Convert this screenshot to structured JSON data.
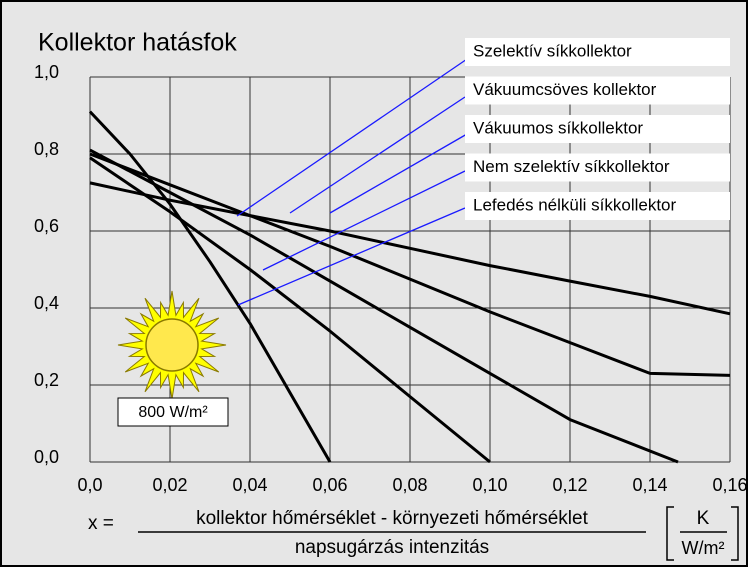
{
  "chart_data": {
    "type": "line",
    "title": "Kollektor hatásfok",
    "annotation": "800 W/m²",
    "x_label": {
      "prefix": "x =",
      "numerator": "kollektor hőmérséklet - környezeti hőmérséklet",
      "denominator": "napsugárzás intenzitás",
      "unit_numerator": "K",
      "unit_denominator": "W/m²"
    },
    "xlim": [
      0,
      0.16
    ],
    "ylim": [
      0,
      1.0
    ],
    "xticks": [
      {
        "value": 0,
        "label": "0,0"
      },
      {
        "value": 0.02,
        "label": "0,02"
      },
      {
        "value": 0.04,
        "label": "0,04"
      },
      {
        "value": 0.06,
        "label": "0,06"
      },
      {
        "value": 0.08,
        "label": "0,08"
      },
      {
        "value": 0.1,
        "label": "0,10"
      },
      {
        "value": 0.12,
        "label": "0,12"
      },
      {
        "value": 0.14,
        "label": "0,14"
      },
      {
        "value": 0.16,
        "label": "0,16"
      }
    ],
    "yticks": [
      {
        "value": 0,
        "label": "0,0"
      },
      {
        "value": 0.2,
        "label": "0,2"
      },
      {
        "value": 0.4,
        "label": "0,4"
      },
      {
        "value": 0.6,
        "label": "0,6"
      },
      {
        "value": 0.8,
        "label": "0,8"
      },
      {
        "value": 1.0,
        "label": "1,0"
      }
    ],
    "grid": true,
    "series": [
      {
        "name": "Szelektív síkkollektor",
        "color": "#000000",
        "x": [
          0,
          0.02,
          0.04,
          0.06,
          0.08,
          0.1,
          0.12,
          0.147
        ],
        "values": [
          0.81,
          0.7,
          0.59,
          0.47,
          0.35,
          0.23,
          0.11,
          0
        ]
      },
      {
        "name": "Vákuumcsöves kollektor",
        "color": "#000000",
        "x": [
          0,
          0.02,
          0.04,
          0.06,
          0.08,
          0.1,
          0.12,
          0.14,
          0.16
        ],
        "values": [
          0.725,
          0.68,
          0.64,
          0.6,
          0.555,
          0.51,
          0.47,
          0.43,
          0.385
        ]
      },
      {
        "name": "Vákuumos síkkollektor",
        "color": "#000000",
        "x": [
          0,
          0.02,
          0.04,
          0.06,
          0.08,
          0.1,
          0.12,
          0.14,
          0.16
        ],
        "values": [
          0.8,
          0.72,
          0.64,
          0.56,
          0.475,
          0.39,
          0.31,
          0.23,
          0.225
        ]
      },
      {
        "name": "Nem szelektív síkkollektor",
        "color": "#000000",
        "x": [
          0,
          0.02,
          0.04,
          0.06,
          0.08,
          0.1
        ],
        "values": [
          0.79,
          0.65,
          0.5,
          0.34,
          0.17,
          0
        ]
      },
      {
        "name": "Lefedés nélküli síkkollektor",
        "color": "#000000",
        "x": [
          0,
          0.01,
          0.02,
          0.03,
          0.04,
          0.05,
          0.06
        ],
        "values": [
          0.91,
          0.8,
          0.67,
          0.52,
          0.36,
          0.18,
          0
        ]
      }
    ]
  }
}
